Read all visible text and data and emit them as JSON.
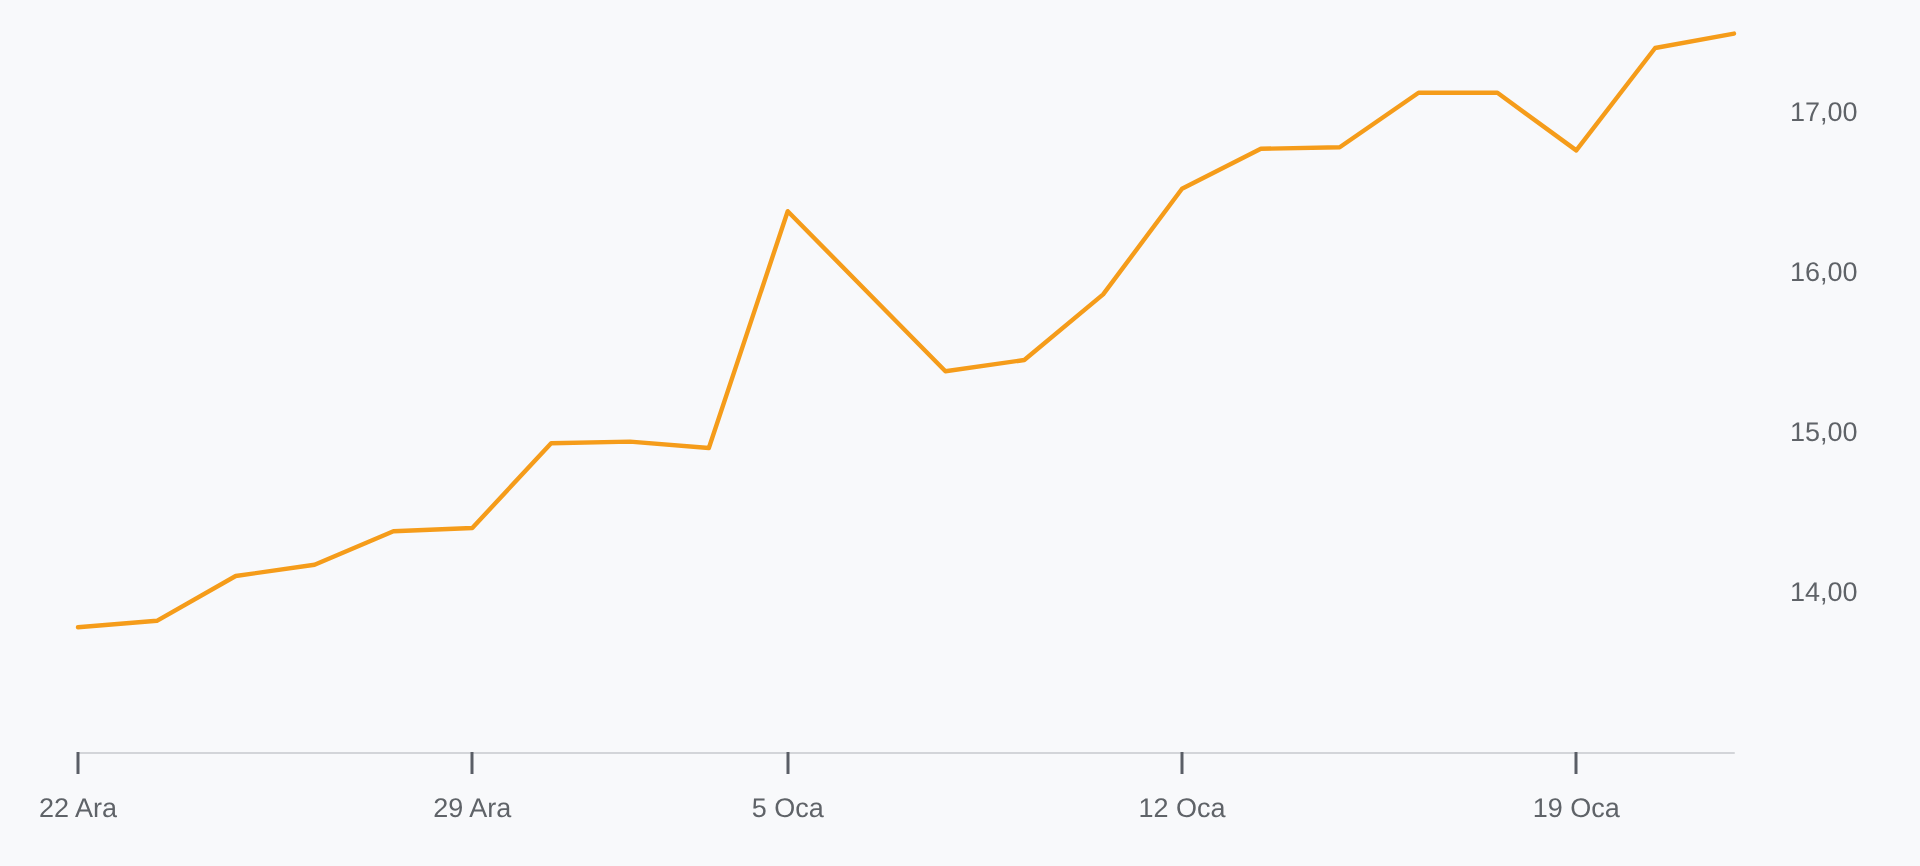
{
  "chart_data": {
    "type": "line",
    "categories": [
      "22 Ara",
      null,
      null,
      null,
      null,
      "29 Ara",
      null,
      null,
      null,
      "5 Oca",
      null,
      null,
      null,
      null,
      "12 Oca",
      null,
      null,
      null,
      null,
      "19 Oca",
      null,
      null
    ],
    "values": [
      13.78,
      13.82,
      14.1,
      14.17,
      14.38,
      14.4,
      14.93,
      14.94,
      14.9,
      16.38,
      15.88,
      15.38,
      15.45,
      15.86,
      16.52,
      16.77,
      16.78,
      17.12,
      17.12,
      16.76,
      17.4,
      17.49
    ],
    "color": "#f59c1a",
    "ylim": [
      13,
      17.7
    ],
    "yticks": [
      {
        "value": 14,
        "label": "14,00"
      },
      {
        "value": 15,
        "label": "15,00"
      },
      {
        "value": 16,
        "label": "16,00"
      },
      {
        "value": 17,
        "label": "17,00"
      }
    ],
    "grid": false,
    "marker": "none",
    "line_style": "solid"
  }
}
